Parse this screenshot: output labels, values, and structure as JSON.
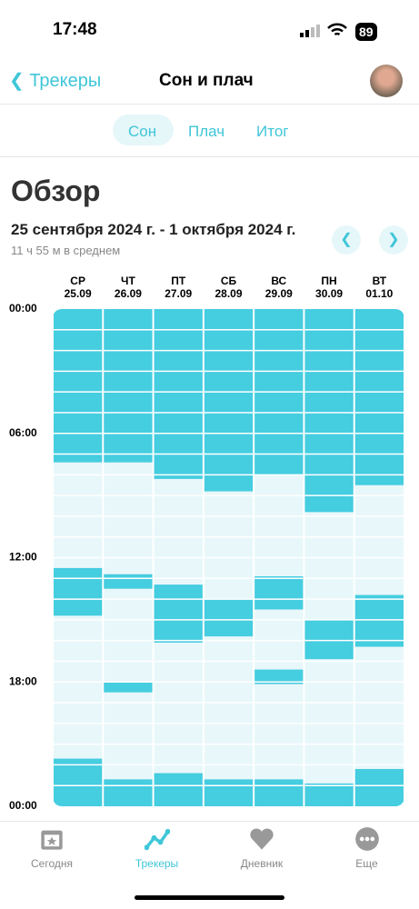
{
  "status": {
    "time": "17:48",
    "battery": "89"
  },
  "nav": {
    "back": "Трекеры",
    "title": "Сон и плач"
  },
  "tabs": [
    "Сон",
    "Плач",
    "Итог"
  ],
  "overview": {
    "title": "Обзор",
    "range": "25 сентября 2024 г. - 1 октября 2024 г.",
    "average": "11 ч 55 м в среднем"
  },
  "chart": {
    "ylim": [
      0,
      24
    ],
    "yticks": [
      {
        "value": 0,
        "label": "00:00"
      },
      {
        "value": 6,
        "label": "06:00"
      },
      {
        "value": 12,
        "label": "12:00"
      },
      {
        "value": 18,
        "label": "18:00"
      },
      {
        "value": 24,
        "label": "00:00"
      }
    ],
    "days": [
      {
        "label": "СР",
        "date": "25.09",
        "intervals": [
          [
            0,
            7.4
          ],
          [
            12.5,
            14.8
          ],
          [
            21.7,
            24
          ]
        ]
      },
      {
        "label": "ЧТ",
        "date": "26.09",
        "intervals": [
          [
            0,
            7.4
          ],
          [
            12.8,
            13.5
          ],
          [
            18,
            18.5
          ],
          [
            22.7,
            24
          ]
        ]
      },
      {
        "label": "ПТ",
        "date": "27.09",
        "intervals": [
          [
            0,
            8.2
          ],
          [
            13.3,
            16.1
          ],
          [
            22.4,
            24
          ]
        ]
      },
      {
        "label": "СБ",
        "date": "28.09",
        "intervals": [
          [
            0,
            8.8
          ],
          [
            14,
            15.8
          ],
          [
            22.7,
            24
          ]
        ]
      },
      {
        "label": "ВС",
        "date": "29.09",
        "intervals": [
          [
            0,
            8
          ],
          [
            12.9,
            14.5
          ],
          [
            17.4,
            18.1
          ],
          [
            22.7,
            24
          ]
        ]
      },
      {
        "label": "ПН",
        "date": "30.09",
        "intervals": [
          [
            0,
            9.8
          ],
          [
            15,
            16.9
          ],
          [
            22.9,
            24
          ]
        ]
      },
      {
        "label": "ВТ",
        "date": "01.10",
        "intervals": [
          [
            0,
            8.5
          ],
          [
            13.8,
            16.3
          ],
          [
            22.2,
            24
          ]
        ]
      }
    ]
  },
  "tabbar": [
    "Сегодня",
    "Трекеры",
    "Дневник",
    "Еще"
  ]
}
